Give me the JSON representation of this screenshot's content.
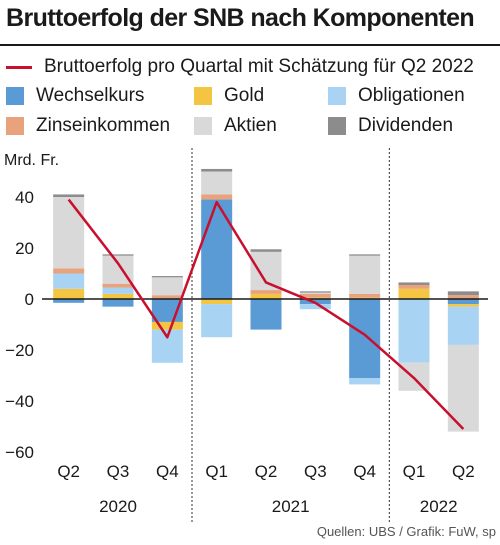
{
  "title": "Bruttoerfolg der SNB nach Komponenten",
  "source": "Quellen: UBS / Grafik: FuW, sp",
  "legend": {
    "line_label": "Bruttoerfolg pro Quartal mit Schätzung für Q2 2022",
    "items": [
      {
        "label": "Wechselkurs",
        "color": "#5b9bd5"
      },
      {
        "label": "Gold",
        "color": "#f4c542"
      },
      {
        "label": "Obligationen",
        "color": "#a9d3f2"
      },
      {
        "label": "Zinseinkommen",
        "color": "#e8a27c"
      },
      {
        "label": "Aktien",
        "color": "#d9d9d9"
      },
      {
        "label": "Dividenden",
        "color": "#8c8c8c"
      }
    ]
  },
  "chart_data": {
    "type": "bar",
    "stacked": true,
    "ylabel": "Mrd. Fr.",
    "ylim": [
      -60,
      50
    ],
    "yticks": [
      40,
      20,
      0,
      -20,
      -40,
      -60
    ],
    "grid": "dotted vertical separators between years",
    "categories": [
      "Q2",
      "Q3",
      "Q4",
      "Q1",
      "Q2",
      "Q3",
      "Q4",
      "Q1",
      "Q2"
    ],
    "years": [
      {
        "label": "2020",
        "start": 0,
        "end": 2
      },
      {
        "label": "2021",
        "start": 3,
        "end": 6
      },
      {
        "label": "2022",
        "start": 7,
        "end": 8
      }
    ],
    "series": [
      {
        "name": "Wechselkurs",
        "color": "#5b9bd5",
        "values": [
          -1.5,
          -3,
          -9,
          39,
          -12,
          -2,
          -31,
          0,
          -2
        ]
      },
      {
        "name": "Gold",
        "color": "#f4c542",
        "values": [
          4,
          2,
          -3,
          -2,
          2,
          0.5,
          0.5,
          4,
          -1
        ]
      },
      {
        "name": "Obligationen",
        "color": "#a9d3f2",
        "values": [
          6,
          2.5,
          -13,
          -13,
          0,
          -2,
          -2.5,
          -25,
          -15
        ]
      },
      {
        "name": "Zinseinkommen",
        "color": "#e8a27c",
        "values": [
          2,
          1.5,
          1.5,
          2,
          1.5,
          1.5,
          1.5,
          1.5,
          1.5
        ]
      },
      {
        "name": "Aktien",
        "color": "#d9d9d9",
        "values": [
          28,
          11,
          7,
          9,
          15,
          0.5,
          15,
          -11,
          -34
        ]
      },
      {
        "name": "Dividenden",
        "color": "#8c8c8c",
        "values": [
          1,
          0.5,
          0.5,
          1,
          1,
          0.5,
          0.5,
          1,
          1.5
        ]
      }
    ],
    "line": {
      "name": "Bruttoerfolg pro Quartal mit Schätzung für Q2 2022",
      "color": "#c8102e",
      "values": [
        39,
        14,
        -15,
        38,
        6.5,
        -1.5,
        -14,
        -31,
        -51
      ]
    }
  }
}
